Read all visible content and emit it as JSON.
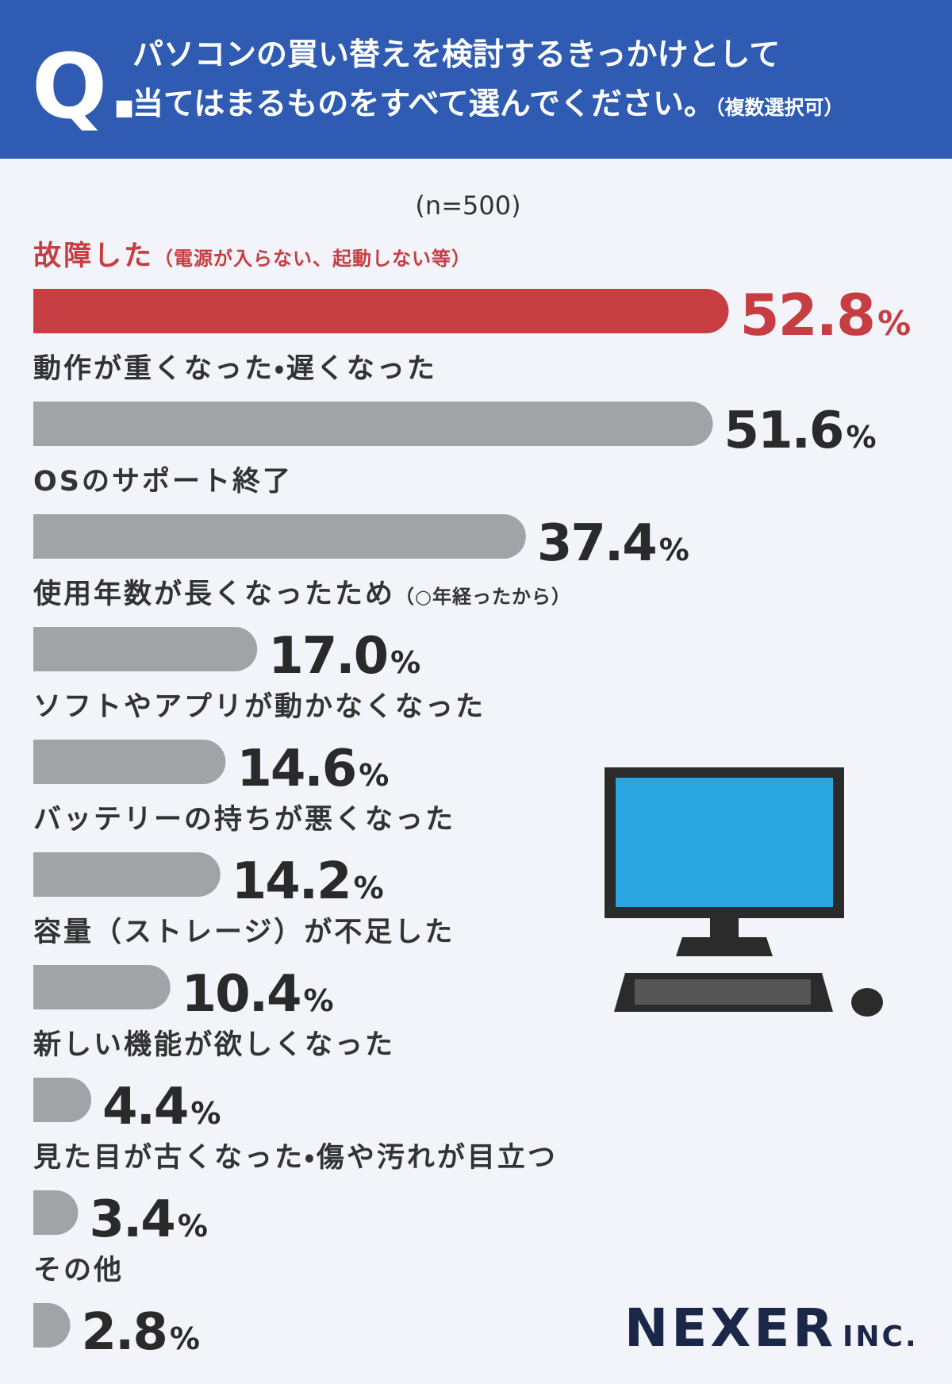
{
  "chart_data": {
    "type": "bar",
    "title_label": "Q.",
    "title_lines": [
      "パソコンの買い替えを検討するきっかけとして",
      "当てはまるものをすべて選んでください。"
    ],
    "title_note": "（複数選択可）",
    "subtitle": "(n=500)",
    "categories": [
      "故障した",
      "動作が重くなった・遅くなった",
      "OSのサポート終了",
      "使用年数が長くなったため",
      "ソフトやアプリが動かなくなった",
      "バッテリーの持ちが悪くなった",
      "容量（ストレージ）が不足した",
      "新しい機能が欲しくなった",
      "見た目が古くなった・傷や汚れが目立つ",
      "その他"
    ],
    "category_notes": [
      "（電源が入らない、起動しない等）",
      null,
      null,
      "（○年経ったから）",
      null,
      null,
      null,
      null,
      null,
      null
    ],
    "values": [
      52.8,
      51.6,
      37.4,
      17.0,
      14.6,
      14.2,
      10.4,
      4.4,
      3.4,
      2.8
    ],
    "value_labels": [
      "52.8",
      "51.6",
      "37.4",
      "17.0",
      "14.6",
      "14.2",
      "10.4",
      "4.4",
      "3.4",
      "2.8"
    ],
    "unit": "%",
    "colors": [
      "#c63d42",
      "#a1a3a7",
      "#a1a3a7",
      "#a1a3a7",
      "#a1a3a7",
      "#a1a3a7",
      "#a1a3a7",
      "#a1a3a7",
      "#a1a3a7",
      "#a1a3a7"
    ],
    "brand": "NEXER",
    "brand_suffix": "INC."
  }
}
